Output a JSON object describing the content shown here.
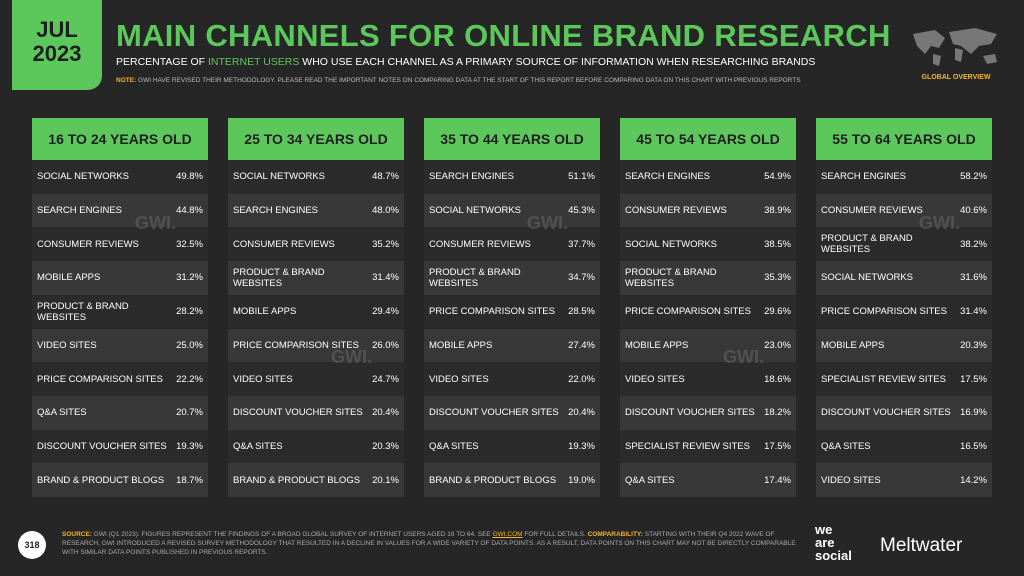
{
  "header": {
    "date_month": "JUL",
    "date_year": "2023",
    "title": "MAIN CHANNELS FOR ONLINE BRAND RESEARCH",
    "subtitle": {
      "before": "PERCENTAGE OF ",
      "highlight": "INTERNET USERS",
      "after": " WHO USE EACH CHANNEL AS A PRIMARY SOURCE OF INFORMATION WHEN RESEARCHING BRANDS"
    },
    "note": {
      "label": "NOTE:",
      "text": " GWI HAVE REVISED THEIR METHODOLOGY. PLEASE READ THE IMPORTANT NOTES ON COMPARING DATA AT THE START OF THIS REPORT BEFORE COMPARING DATA ON THIS CHART WITH PREVIOUS REPORTS"
    },
    "section": "GLOBAL OVERVIEW"
  },
  "watermark": "GWI.",
  "columns": [
    {
      "title": "16 TO 24 YEARS OLD",
      "rows": [
        [
          "SOCIAL NETWORKS",
          "49.8%"
        ],
        [
          "SEARCH ENGINES",
          "44.8%"
        ],
        [
          "CONSUMER REVIEWS",
          "32.5%"
        ],
        [
          "MOBILE APPS",
          "31.2%"
        ],
        [
          "PRODUCT & BRAND WEBSITES",
          "28.2%"
        ],
        [
          "VIDEO SITES",
          "25.0%"
        ],
        [
          "PRICE COMPARISON SITES",
          "22.2%"
        ],
        [
          "Q&A SITES",
          "20.7%"
        ],
        [
          "DISCOUNT VOUCHER SITES",
          "19.3%"
        ],
        [
          "BRAND & PRODUCT BLOGS",
          "18.7%"
        ]
      ]
    },
    {
      "title": "25 TO 34 YEARS OLD",
      "rows": [
        [
          "SOCIAL NETWORKS",
          "48.7%"
        ],
        [
          "SEARCH ENGINES",
          "48.0%"
        ],
        [
          "CONSUMER REVIEWS",
          "35.2%"
        ],
        [
          "PRODUCT & BRAND WEBSITES",
          "31.4%"
        ],
        [
          "MOBILE APPS",
          "29.4%"
        ],
        [
          "PRICE COMPARISON SITES",
          "26.0%"
        ],
        [
          "VIDEO SITES",
          "24.7%"
        ],
        [
          "DISCOUNT VOUCHER SITES",
          "20.4%"
        ],
        [
          "Q&A SITES",
          "20.3%"
        ],
        [
          "BRAND & PRODUCT BLOGS",
          "20.1%"
        ]
      ]
    },
    {
      "title": "35 TO 44 YEARS OLD",
      "rows": [
        [
          "SEARCH ENGINES",
          "51.1%"
        ],
        [
          "SOCIAL NETWORKS",
          "45.3%"
        ],
        [
          "CONSUMER REVIEWS",
          "37.7%"
        ],
        [
          "PRODUCT & BRAND WEBSITES",
          "34.7%"
        ],
        [
          "PRICE COMPARISON SITES",
          "28.5%"
        ],
        [
          "MOBILE APPS",
          "27.4%"
        ],
        [
          "VIDEO SITES",
          "22.0%"
        ],
        [
          "DISCOUNT VOUCHER SITES",
          "20.4%"
        ],
        [
          "Q&A SITES",
          "19.3%"
        ],
        [
          "BRAND & PRODUCT BLOGS",
          "19.0%"
        ]
      ]
    },
    {
      "title": "45 TO 54 YEARS OLD",
      "rows": [
        [
          "SEARCH ENGINES",
          "54.9%"
        ],
        [
          "CONSUMER REVIEWS",
          "38.9%"
        ],
        [
          "SOCIAL NETWORKS",
          "38.5%"
        ],
        [
          "PRODUCT & BRAND WEBSITES",
          "35.3%"
        ],
        [
          "PRICE COMPARISON SITES",
          "29.6%"
        ],
        [
          "MOBILE APPS",
          "23.0%"
        ],
        [
          "VIDEO SITES",
          "18.6%"
        ],
        [
          "DISCOUNT VOUCHER SITES",
          "18.2%"
        ],
        [
          "SPECIALIST REVIEW SITES",
          "17.5%"
        ],
        [
          "Q&A SITES",
          "17.4%"
        ]
      ]
    },
    {
      "title": "55 TO 64 YEARS OLD",
      "rows": [
        [
          "SEARCH ENGINES",
          "58.2%"
        ],
        [
          "CONSUMER REVIEWS",
          "40.6%"
        ],
        [
          "PRODUCT & BRAND WEBSITES",
          "38.2%"
        ],
        [
          "SOCIAL NETWORKS",
          "31.6%"
        ],
        [
          "PRICE COMPARISON SITES",
          "31.4%"
        ],
        [
          "MOBILE APPS",
          "20.3%"
        ],
        [
          "SPECIALIST REVIEW SITES",
          "17.5%"
        ],
        [
          "DISCOUNT VOUCHER SITES",
          "16.9%"
        ],
        [
          "Q&A SITES",
          "16.5%"
        ],
        [
          "VIDEO SITES",
          "14.2%"
        ]
      ]
    }
  ],
  "footer": {
    "page": "318",
    "source_label": "SOURCE:",
    "source_text": " GWI (Q1 2023). FIGURES REPRESENT THE FINDINGS OF A BROAD GLOBAL SURVEY OF INTERNET USERS AGED 16 TO 64. SEE ",
    "source_link": "GWI.COM",
    "source_text2": " FOR FULL DETAILS. ",
    "comparability_label": "COMPARABILITY:",
    "comparability_text": " STARTING WITH THEIR Q4 2022 WAVE OF RESEARCH, GWI INTRODUCED A REVISED SURVEY METHODOLOGY THAT RESULTED IN A DECLINE IN VALUES FOR A WIDE VARIETY OF DATA POINTS. AS A RESULT, DATA POINTS ON THIS CHART MAY NOT BE DIRECTLY COMPARABLE WITH SIMILAR DATA POINTS PUBLISHED IN PREVIOUS REPORTS.",
    "brand1": [
      "we",
      "are",
      "social"
    ],
    "brand2": "Meltwater"
  }
}
